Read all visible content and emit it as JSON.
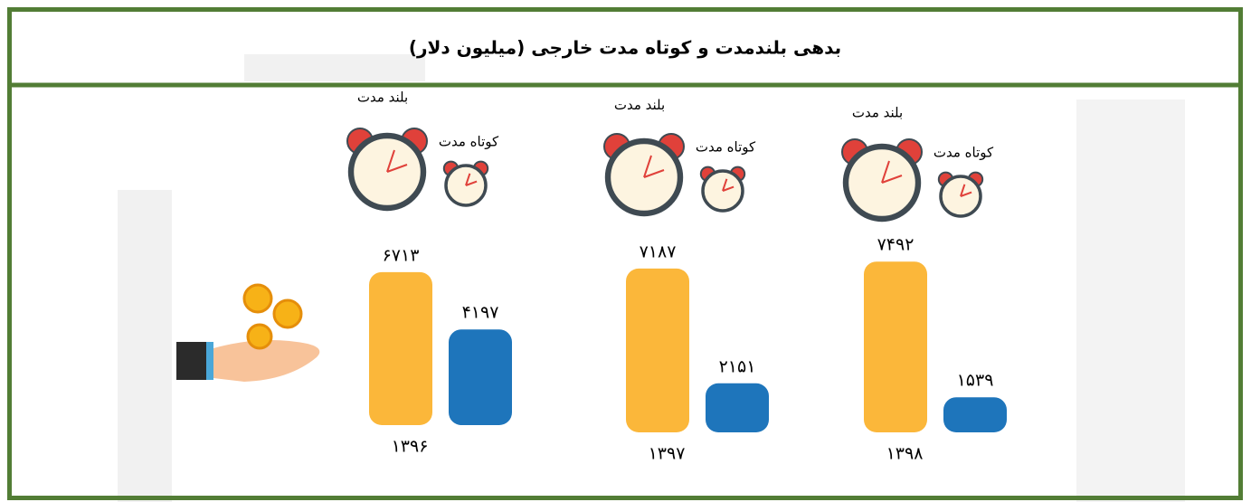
{
  "chart_data": {
    "type": "bar",
    "title": "بدهی بلندمدت و کوتاه مدت خارجی (میلیون دلار)",
    "categories": [
      "۱۳۹۶",
      "۱۳۹۷",
      "۱۳۹۸"
    ],
    "series": [
      {
        "name": "بلند مدت",
        "color": "#fbb73a",
        "values": [
          6713,
          7187,
          7492
        ],
        "value_labels": [
          "۶۷۱۳",
          "۷۱۸۷",
          "۷۴۹۲"
        ]
      },
      {
        "name": "کوتاه مدت",
        "color": "#1e75bb",
        "values": [
          4197,
          2151,
          1539
        ],
        "value_labels": [
          "۴۱۹۷",
          "۲۱۵۱",
          "۱۵۳۹"
        ]
      }
    ]
  }
}
